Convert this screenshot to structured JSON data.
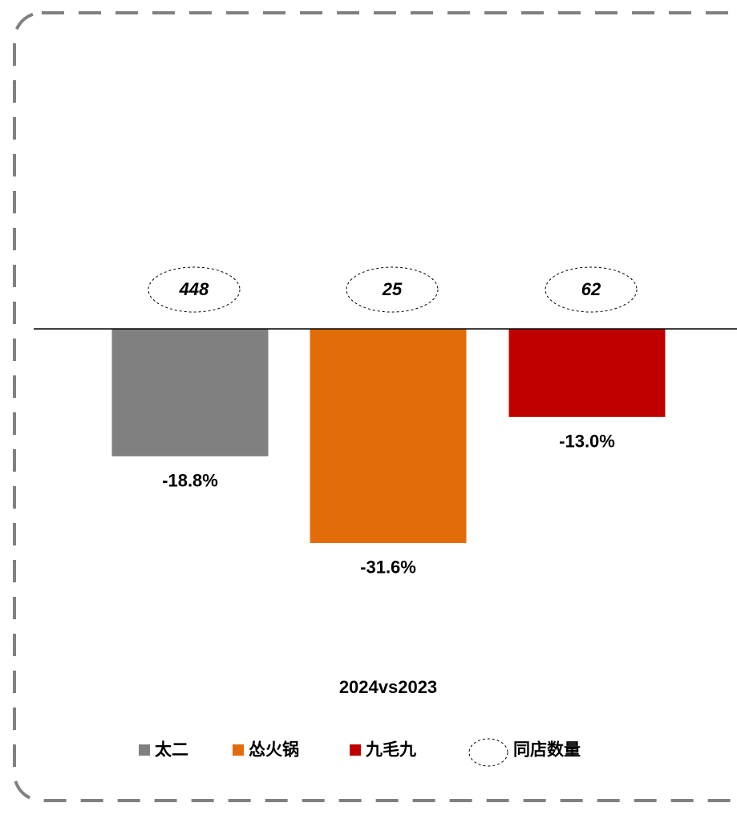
{
  "chart_data": {
    "type": "bar",
    "categories": [
      "2024vs2023"
    ],
    "series": [
      {
        "name": "太二",
        "color": "#808080",
        "values": [
          -18.8
        ],
        "value_labels": [
          "-18.8%"
        ]
      },
      {
        "name": "怂火锅",
        "color": "#e36c0a",
        "values": [
          -31.6
        ],
        "value_labels": [
          "-31.6%"
        ]
      },
      {
        "name": "九毛九",
        "color": "#c00000",
        "values": [
          -13.0
        ],
        "value_labels": [
          "-13.0%"
        ]
      }
    ],
    "store_counts": {
      "name": "同店数量",
      "values": [
        448,
        25,
        62
      ]
    },
    "ylim": [
      -38,
      0
    ]
  }
}
